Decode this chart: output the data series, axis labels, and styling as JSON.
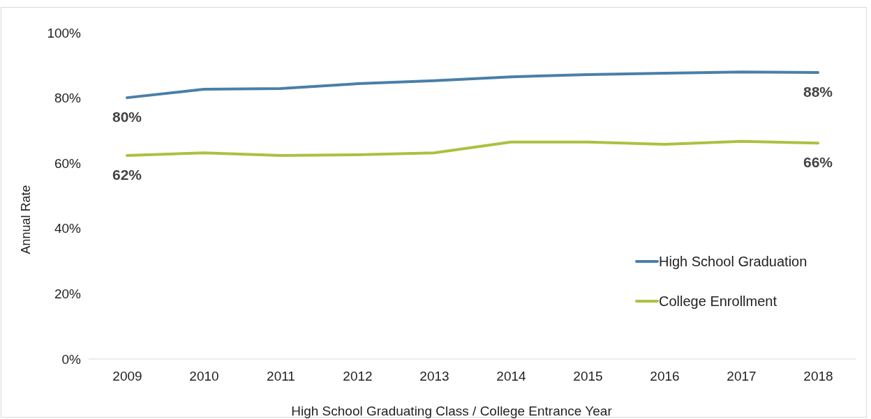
{
  "chart_data": {
    "type": "line",
    "xlabel": "High School Graduating Class / College Entrance Year",
    "ylabel": "Annual Rate",
    "categories": [
      "2009",
      "2010",
      "2011",
      "2012",
      "2013",
      "2014",
      "2015",
      "2016",
      "2017",
      "2018"
    ],
    "series": [
      {
        "name": "High School Graduation",
        "color": "#4a7fa8",
        "values": [
          80.1,
          82.7,
          82.9,
          84.4,
          85.3,
          86.5,
          87.2,
          87.6,
          88.0,
          87.8
        ],
        "value_labels": [
          "80%",
          null,
          null,
          null,
          null,
          null,
          null,
          null,
          null,
          "88%"
        ]
      },
      {
        "name": "College Enrollment",
        "color": "#a9c23f",
        "values": [
          62.4,
          63.2,
          62.4,
          62.6,
          63.2,
          66.5,
          66.5,
          65.8,
          66.7,
          66.2
        ],
        "value_labels": [
          "62%",
          null,
          null,
          null,
          null,
          null,
          null,
          null,
          null,
          "66%"
        ]
      }
    ],
    "ylim": [
      0,
      100
    ],
    "yticks": [
      {
        "value": 0,
        "label": "0%"
      },
      {
        "value": 20,
        "label": "20%"
      },
      {
        "value": 40,
        "label": "40%"
      },
      {
        "value": 60,
        "label": "60%"
      },
      {
        "value": 80,
        "label": "80%"
      },
      {
        "value": 100,
        "label": "100%"
      }
    ],
    "grid": false,
    "legend": "right",
    "marker": "none",
    "line_style": "solid"
  }
}
